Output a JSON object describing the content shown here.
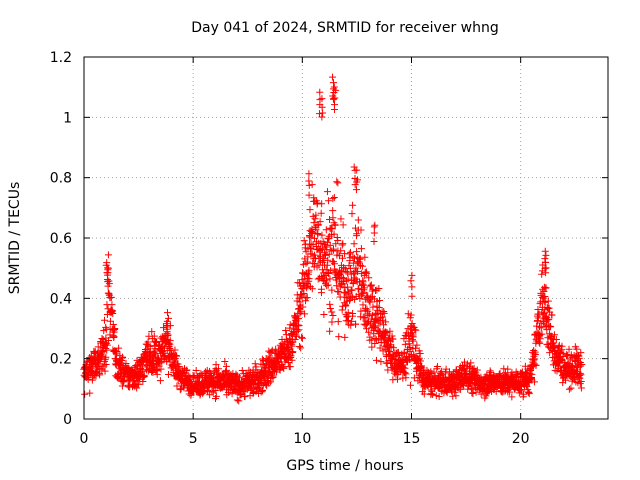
{
  "chart_data": {
    "type": "scatter",
    "title": "Day 041 of 2024, SRMTID for receiver whng",
    "xlabel": "GPS time / hours",
    "ylabel": "SRMTID / TECUs",
    "xlim": [
      0,
      24
    ],
    "ylim": [
      0,
      1.2
    ],
    "xticks": [
      0,
      5,
      10,
      15,
      20
    ],
    "xtick_labels": [
      "0",
      "5",
      "10",
      "15",
      "20"
    ],
    "yticks": [
      0,
      0.2,
      0.4,
      0.6,
      0.8,
      1.0,
      1.2
    ],
    "ytick_labels": [
      "0",
      "0.2",
      "0.4",
      "0.6",
      "0.8",
      "1",
      "1.2"
    ],
    "grid": true,
    "marker": "+",
    "color": "#ff0000",
    "series": [
      {
        "name": "SRMTID",
        "description": "Approximate envelope of the dense point cloud (hour, typical value, spread) used to regenerate the scatter",
        "profile": [
          [
            0.0,
            0.15,
            0.05
          ],
          [
            0.5,
            0.18,
            0.06
          ],
          [
            1.0,
            0.25,
            0.1
          ],
          [
            1.1,
            0.42,
            0.12
          ],
          [
            1.5,
            0.18,
            0.06
          ],
          [
            2.0,
            0.14,
            0.04
          ],
          [
            2.5,
            0.15,
            0.05
          ],
          [
            3.0,
            0.22,
            0.07
          ],
          [
            3.5,
            0.2,
            0.06
          ],
          [
            3.8,
            0.27,
            0.08
          ],
          [
            4.2,
            0.16,
            0.05
          ],
          [
            5.0,
            0.11,
            0.03
          ],
          [
            6.0,
            0.13,
            0.05
          ],
          [
            7.0,
            0.11,
            0.04
          ],
          [
            8.0,
            0.13,
            0.05
          ],
          [
            8.5,
            0.17,
            0.06
          ],
          [
            9.0,
            0.2,
            0.06
          ],
          [
            9.5,
            0.25,
            0.07
          ],
          [
            10.0,
            0.4,
            0.12
          ],
          [
            10.5,
            0.62,
            0.2
          ],
          [
            11.0,
            0.55,
            0.18
          ],
          [
            11.5,
            0.55,
            0.25
          ],
          [
            12.0,
            0.42,
            0.12
          ],
          [
            12.5,
            0.5,
            0.2
          ],
          [
            13.0,
            0.38,
            0.12
          ],
          [
            13.5,
            0.33,
            0.12
          ],
          [
            14.0,
            0.22,
            0.07
          ],
          [
            14.5,
            0.17,
            0.05
          ],
          [
            15.0,
            0.27,
            0.12
          ],
          [
            15.5,
            0.13,
            0.04
          ],
          [
            16.0,
            0.12,
            0.04
          ],
          [
            17.0,
            0.12,
            0.04
          ],
          [
            17.5,
            0.15,
            0.05
          ],
          [
            18.0,
            0.12,
            0.04
          ],
          [
            19.0,
            0.12,
            0.04
          ],
          [
            20.0,
            0.12,
            0.04
          ],
          [
            20.5,
            0.14,
            0.05
          ],
          [
            21.0,
            0.4,
            0.12
          ],
          [
            21.5,
            0.24,
            0.08
          ],
          [
            22.0,
            0.17,
            0.05
          ],
          [
            22.5,
            0.17,
            0.06
          ],
          [
            22.8,
            0.17,
            0.06
          ]
        ],
        "peaks": [
          [
            1.05,
            0.53
          ],
          [
            1.1,
            0.51
          ],
          [
            3.8,
            0.36
          ],
          [
            10.8,
            1.09
          ],
          [
            10.9,
            1.07
          ],
          [
            11.4,
            1.14
          ],
          [
            11.45,
            1.12
          ],
          [
            11.5,
            1.1
          ],
          [
            12.4,
            0.85
          ],
          [
            12.5,
            0.83
          ],
          [
            15.0,
            0.48
          ],
          [
            21.1,
            0.57
          ],
          [
            21.15,
            0.55
          ],
          [
            10.3,
            0.82
          ],
          [
            13.3,
            0.66
          ]
        ],
        "point_count": 2600
      }
    ]
  }
}
